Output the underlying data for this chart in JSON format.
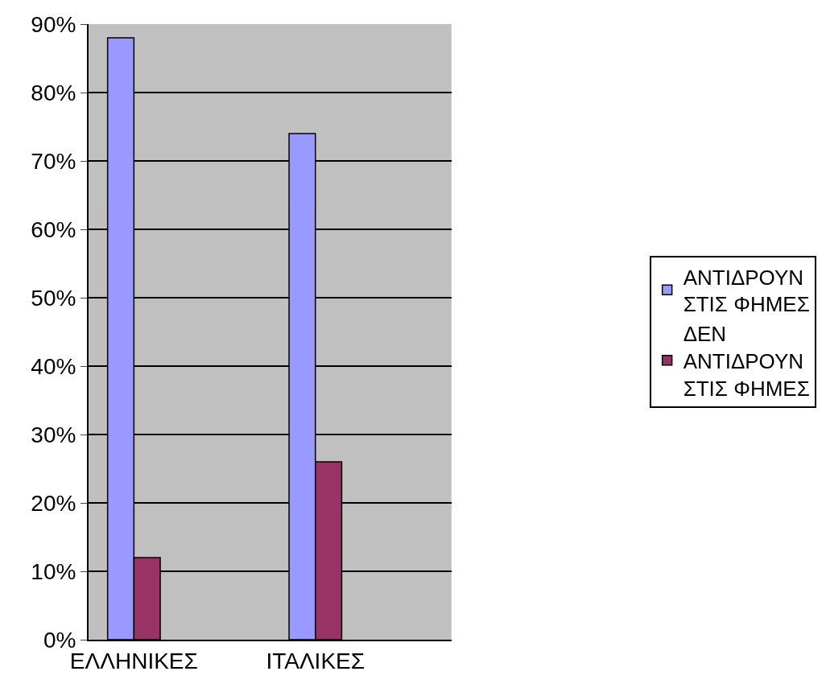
{
  "chart_data": {
    "type": "bar",
    "categories": [
      "ΕΛΛΗΝΙΚΕΣ",
      null,
      "ΙΤΑΛΙΚΕΣ",
      null
    ],
    "series": [
      {
        "name": "ΑΝΤΙΔΡΟΥΝ ΣΤΙΣ ΦΗΜΕΣ",
        "color": "#9999ff",
        "values": [
          88,
          null,
          74,
          null
        ]
      },
      {
        "name": "ΔΕΝ ΑΝΤΙΔΡΟΥΝ ΣΤΙΣ ΦΗΜΕΣ",
        "color": "#993366",
        "values": [
          12,
          null,
          26,
          null
        ]
      }
    ],
    "ylim": [
      0,
      90
    ],
    "yticks": [
      {
        "value": 0,
        "label": "0%"
      },
      {
        "value": 10,
        "label": "10%"
      },
      {
        "value": 20,
        "label": "20%"
      },
      {
        "value": 30,
        "label": "30%"
      },
      {
        "value": 40,
        "label": "40%"
      },
      {
        "value": 50,
        "label": "50%"
      },
      {
        "value": 60,
        "label": "60%"
      },
      {
        "value": 70,
        "label": "70%"
      },
      {
        "value": 80,
        "label": "80%"
      },
      {
        "value": 90,
        "label": "90%"
      }
    ],
    "grid": "y",
    "legend": "right"
  }
}
